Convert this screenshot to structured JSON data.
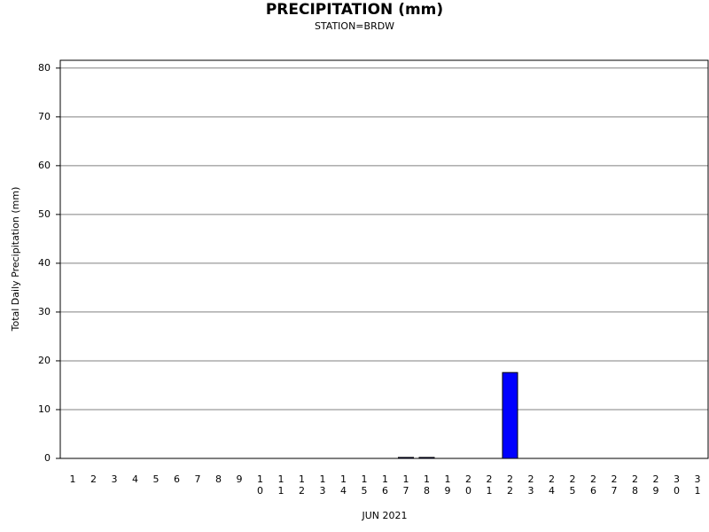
{
  "chart_data": {
    "type": "bar",
    "title": "PRECIPITATION (mm)",
    "subtitle": "STATION=BRDW",
    "y_label": "Total Daily Precipitation (mm)",
    "x_label": "JUN 2021",
    "categories": [
      "1",
      "2",
      "3",
      "4",
      "5",
      "6",
      "7",
      "8",
      "9",
      "10",
      "11",
      "12",
      "13",
      "14",
      "15",
      "16",
      "17",
      "18",
      "19",
      "20",
      "21",
      "22",
      "23",
      "24",
      "25",
      "26",
      "27",
      "28",
      "29",
      "30",
      "31"
    ],
    "values": [
      0,
      0,
      0,
      0,
      0,
      0,
      0,
      0,
      0,
      0,
      0,
      0,
      0,
      0,
      0,
      0,
      0.2,
      0.2,
      0,
      0,
      0,
      17.6,
      0,
      0,
      0,
      0,
      0,
      0,
      0,
      0,
      0
    ],
    "color": "#0000ff",
    "ylim": [
      0,
      81.6
    ],
    "yticks": [
      0,
      10,
      20,
      30,
      40,
      50,
      60,
      70,
      80
    ],
    "grid": true
  }
}
